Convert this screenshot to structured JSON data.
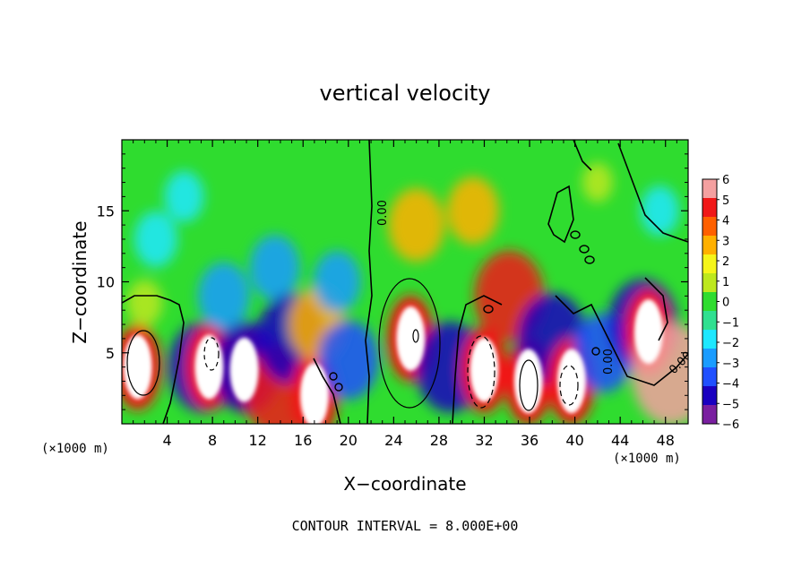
{
  "chart_data": {
    "type": "heatmap",
    "title": "vertical velocity",
    "xlabel": "X−coordinate",
    "ylabel": "Z−coordinate",
    "x_unit": "(×1000 m)",
    "xlim": [
      0,
      50
    ],
    "ylim": [
      0,
      20
    ],
    "x_ticks": [
      "4",
      "8",
      "12",
      "16",
      "20",
      "24",
      "28",
      "32",
      "36",
      "40",
      "44",
      "48"
    ],
    "y_ticks": [
      "5",
      "10",
      "15"
    ],
    "colorbar": {
      "ticks": [
        "6",
        "5",
        "4",
        "3",
        "2",
        "1",
        "0",
        "−1",
        "−2",
        "−3",
        "−4",
        "−5",
        "−6"
      ],
      "range": [
        -6,
        6
      ]
    },
    "contour_labels": [
      "0.00",
      "0.00",
      "0.00"
    ],
    "footer": "CONTOUR INTERVAL = 8.000E+00",
    "cells": [
      {
        "x": 1.4,
        "z": 4.0,
        "w": 8.0
      },
      {
        "x": 2.0,
        "z": 8.5,
        "w": 1.2
      },
      {
        "x": 3.0,
        "z": 13.0,
        "w": -2.0
      },
      {
        "x": 5.5,
        "z": 16.0,
        "w": -1.6
      },
      {
        "x": 7.2,
        "z": 4.0,
        "w": -5.0
      },
      {
        "x": 7.7,
        "z": 4.0,
        "w": 7.0
      },
      {
        "x": 9.0,
        "z": 9.0,
        "w": -3.0
      },
      {
        "x": 10.8,
        "z": 3.8,
        "w": 7.0
      },
      {
        "x": 11.0,
        "z": 4.0,
        "w": -5.0
      },
      {
        "x": 13.8,
        "z": 2.3,
        "w": 5.0
      },
      {
        "x": 13.5,
        "z": 11.0,
        "w": -2.8
      },
      {
        "x": 15.0,
        "z": 6.0,
        "w": -5.0
      },
      {
        "x": 17.0,
        "z": 2.0,
        "w": 7.0
      },
      {
        "x": 17.2,
        "z": 7.0,
        "w": 3.5
      },
      {
        "x": 19.0,
        "z": 10.0,
        "w": -2.5
      },
      {
        "x": 20.0,
        "z": 4.5,
        "w": -4.0
      },
      {
        "x": 25.5,
        "z": 6.0,
        "w": 8.0
      },
      {
        "x": 26.0,
        "z": 14.0,
        "w": 3.5
      },
      {
        "x": 29.0,
        "z": 4.0,
        "w": -5.0
      },
      {
        "x": 31.0,
        "z": 15.0,
        "w": 3.0
      },
      {
        "x": 32.0,
        "z": 3.8,
        "w": 8.0
      },
      {
        "x": 34.2,
        "z": 9.0,
        "w": 5.0
      },
      {
        "x": 35.9,
        "z": 3.0,
        "w": 7.0
      },
      {
        "x": 38.0,
        "z": 6.0,
        "w": -5.0
      },
      {
        "x": 39.7,
        "z": 3.0,
        "w": 7.0
      },
      {
        "x": 42.5,
        "z": 5.0,
        "w": -4.0
      },
      {
        "x": 46.0,
        "z": 7.0,
        "w": -5.0
      },
      {
        "x": 46.5,
        "z": 6.5,
        "w": 7.0
      },
      {
        "x": 48.5,
        "z": 3.5,
        "w": 6.0
      },
      {
        "x": 47.5,
        "z": 15.0,
        "w": -1.5
      },
      {
        "x": 42.0,
        "z": 17.0,
        "w": 0.6
      }
    ]
  }
}
